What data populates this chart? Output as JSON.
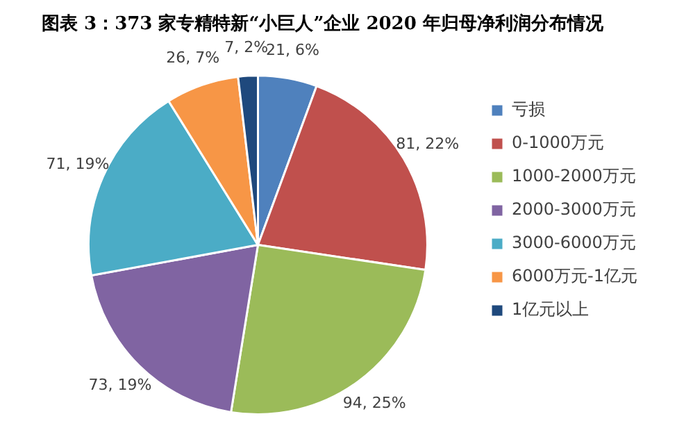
{
  "chart_data": {
    "type": "pie",
    "title": "图表 3：373 家专精特新“小巨人”企业 2020 年归母净利润分布情况",
    "categories": [
      "亏损",
      "0-1000万元",
      "1000-2000万元",
      "2000-3000万元",
      "3000-6000万元",
      "6000万元-1亿元",
      "1亿元以上"
    ],
    "values": [
      21,
      81,
      94,
      73,
      71,
      26,
      7
    ],
    "colors": [
      "#4f81bd",
      "#c0504d",
      "#9bbb59",
      "#8064a2",
      "#4bacc6",
      "#f79646",
      "#1f497d"
    ],
    "value_labels": [
      "21, 6%",
      "81, 22%",
      "94, 25%",
      "73, 19%",
      "71, 19%",
      "26, 7%",
      "7, 2%"
    ],
    "legend": "right"
  }
}
